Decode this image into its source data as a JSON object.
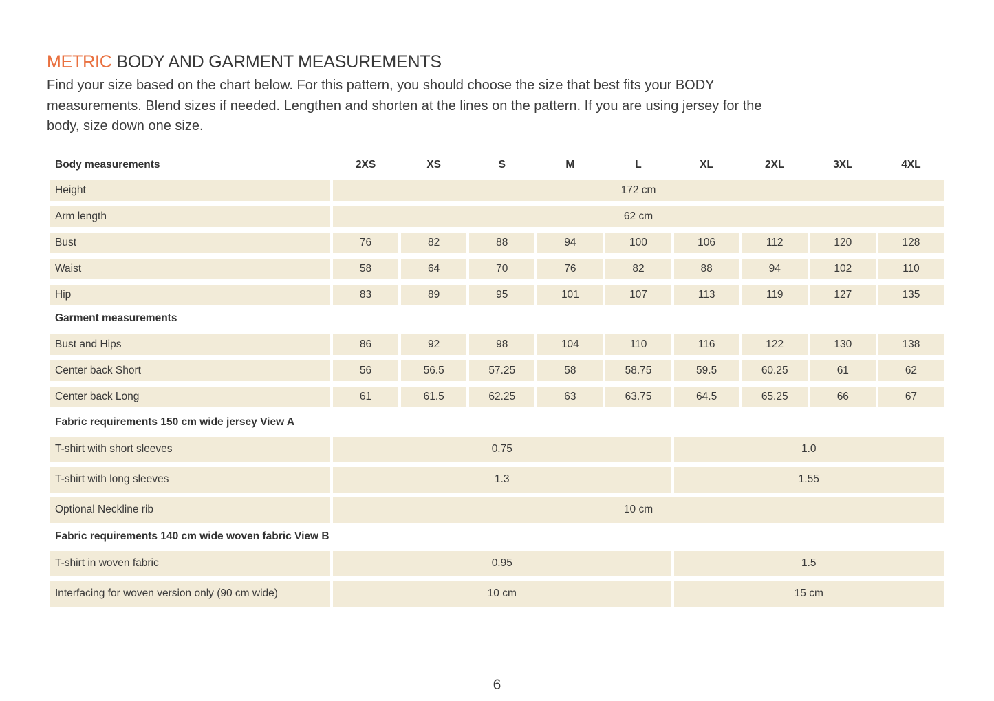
{
  "colors": {
    "accent": "#e97140",
    "cell_bg": "#f2ebd8",
    "text": "#3a3a3a"
  },
  "header": {
    "title_accent": "METRIC",
    "title_rest": "BODY AND GARMENT MEASUREMENTS",
    "intro_lines": [
      "Find your size based on the chart below. For this pattern, you should choose the size that best fits your BODY",
      "measurements. Blend sizes if needed. Lengthen and shorten at the lines on the pattern. If you are using jersey for the",
      "body, size down one size."
    ]
  },
  "table": {
    "header_label": "Body measurements",
    "sizes": [
      "2XS",
      "XS",
      "S",
      "M",
      "L",
      "XL",
      "2XL",
      "3XL",
      "4XL"
    ],
    "body_rows": [
      {
        "label": "Height",
        "span_value": "172 cm"
      },
      {
        "label": "Arm length",
        "span_value": "62 cm"
      },
      {
        "label": "Bust",
        "values": [
          "76",
          "82",
          "88",
          "94",
          "100",
          "106",
          "112",
          "120",
          "128"
        ]
      },
      {
        "label": "Waist",
        "values": [
          "58",
          "64",
          "70",
          "76",
          "82",
          "88",
          "94",
          "102",
          "110"
        ]
      },
      {
        "label": "Hip",
        "values": [
          "83",
          "89",
          "95",
          "101",
          "107",
          "113",
          "119",
          "127",
          "135"
        ]
      }
    ],
    "garment_header": "Garment measurements",
    "garment_rows": [
      {
        "label": "Bust and Hips",
        "values": [
          "86",
          "92",
          "98",
          "104",
          "110",
          "116",
          "122",
          "130",
          "138"
        ]
      },
      {
        "label": "Center back Short",
        "values": [
          "56",
          "56.5",
          "57.25",
          "58",
          "58.75",
          "59.5",
          "60.25",
          "61",
          "62"
        ]
      },
      {
        "label": "Center back Long",
        "values": [
          "61",
          "61.5",
          "62.25",
          "63",
          "63.75",
          "64.5",
          "65.25",
          "66",
          "67"
        ]
      }
    ],
    "fabric_a_header": "Fabric requirements 150 cm wide jersey View A",
    "fabric_a_rows": [
      {
        "label": "T-shirt with short sleeves",
        "left": "0.75",
        "right": "1.0"
      },
      {
        "label": "T-shirt with long sleeves",
        "left": "1.3",
        "right": "1.55"
      },
      {
        "label": "Optional Neckline rib",
        "span_value": "10 cm"
      }
    ],
    "fabric_b_header": "Fabric requirements 140 cm wide woven fabric View B",
    "fabric_b_rows": [
      {
        "label": "T-shirt in woven fabric",
        "left": "0.95",
        "right": "1.5"
      },
      {
        "label": "Interfacing for woven version only (90 cm wide)",
        "left": "10 cm",
        "right": "15 cm"
      }
    ]
  },
  "footer": {
    "page_number": "6"
  }
}
